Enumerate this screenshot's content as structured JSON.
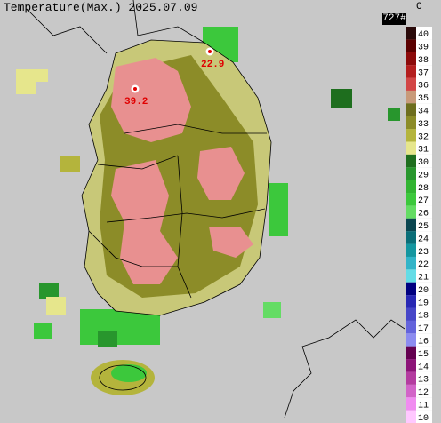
{
  "header": {
    "title": "Temperature(Max.) 2025.07.09",
    "count": "727#"
  },
  "stations": [
    {
      "label": "22.9"
    },
    {
      "label": "39.2"
    }
  ],
  "legend": {
    "unit": "C",
    "levels": [
      {
        "value": 40,
        "color": "#2a0a0a"
      },
      {
        "value": 39,
        "color": "#5a0000"
      },
      {
        "value": 38,
        "color": "#8c0a0a"
      },
      {
        "value": 37,
        "color": "#b41e1e"
      },
      {
        "value": 36,
        "color": "#d24646"
      },
      {
        "value": 35,
        "color": "#c89a7a"
      },
      {
        "value": 34,
        "color": "#6e6e1e"
      },
      {
        "value": 33,
        "color": "#8c8c28"
      },
      {
        "value": 32,
        "color": "#b4b43c"
      },
      {
        "value": 31,
        "color": "#e6e68c"
      },
      {
        "value": 30,
        "color": "#1e6e1e"
      },
      {
        "value": 29,
        "color": "#28962d"
      },
      {
        "value": 28,
        "color": "#32b432"
      },
      {
        "value": 27,
        "color": "#3cc83c"
      },
      {
        "value": 26,
        "color": "#64dc64"
      },
      {
        "value": 25,
        "color": "#0a4650"
      },
      {
        "value": 24,
        "color": "#0a6e78"
      },
      {
        "value": 23,
        "color": "#1496a0"
      },
      {
        "value": 22,
        "color": "#32b4c8"
      },
      {
        "value": 21,
        "color": "#64dce6"
      },
      {
        "value": 20,
        "color": "#000080"
      },
      {
        "value": 19,
        "color": "#2828b4"
      },
      {
        "value": 18,
        "color": "#4646c8"
      },
      {
        "value": 17,
        "color": "#6464dc"
      },
      {
        "value": 16,
        "color": "#8c8cf0"
      },
      {
        "value": 15,
        "color": "#640050"
      },
      {
        "value": 14,
        "color": "#8c1478"
      },
      {
        "value": 13,
        "color": "#b43ca0"
      },
      {
        "value": 12,
        "color": "#d264c8"
      },
      {
        "value": 11,
        "color": "#f08cf0"
      },
      {
        "value": 10,
        "color": "#ffc8ff"
      }
    ]
  }
}
